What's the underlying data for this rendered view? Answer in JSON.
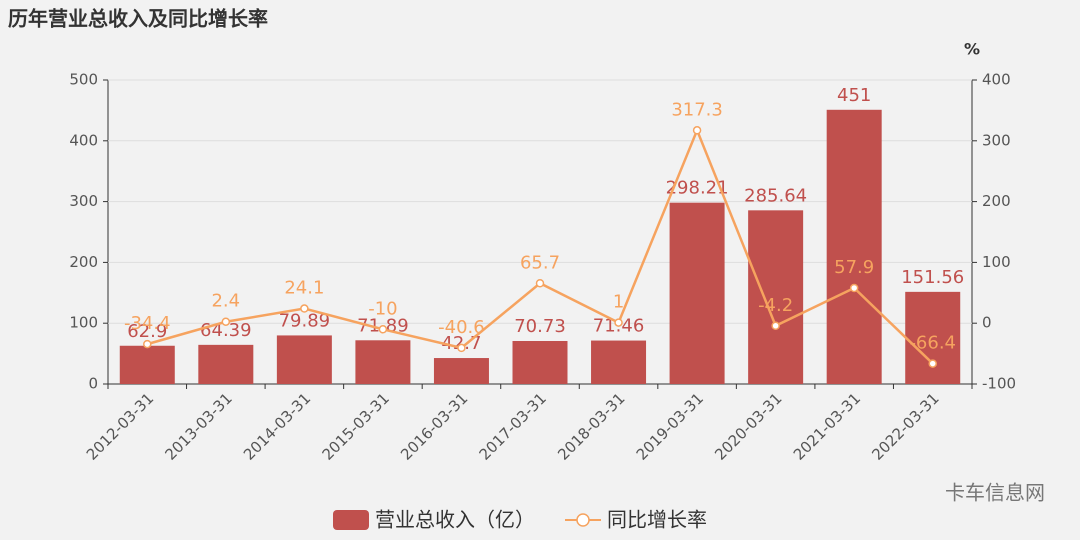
{
  "chart_data": {
    "type": "bar-line",
    "title": "历年营业总收入及同比增长率",
    "y2_label": "%",
    "watermark": "卡车信息网",
    "categories": [
      "2012-03-31",
      "2013-03-31",
      "2014-03-31",
      "2015-03-31",
      "2016-03-31",
      "2017-03-31",
      "2018-03-31",
      "2019-03-31",
      "2020-03-31",
      "2021-03-31",
      "2022-03-31"
    ],
    "series": [
      {
        "name": "营业总收入（亿）",
        "type": "bar",
        "color": "#c0504d",
        "values": [
          62.9,
          64.39,
          79.89,
          71.89,
          42.7,
          70.73,
          71.46,
          298.21,
          285.64,
          451,
          151.56
        ]
      },
      {
        "name": "同比增长率",
        "type": "line",
        "axis": "y2",
        "color": "#f6a35f",
        "values": [
          -34.4,
          2.4,
          24.1,
          -10,
          -40.6,
          65.7,
          1,
          317.3,
          -4.2,
          57.9,
          -66.4
        ]
      }
    ],
    "ylim": [
      0,
      500
    ],
    "yticks": [
      0,
      100,
      200,
      300,
      400,
      500
    ],
    "y2lim": [
      -100,
      400
    ],
    "y2ticks": [
      -100,
      0,
      100,
      200,
      300,
      400
    ],
    "grid": true
  }
}
